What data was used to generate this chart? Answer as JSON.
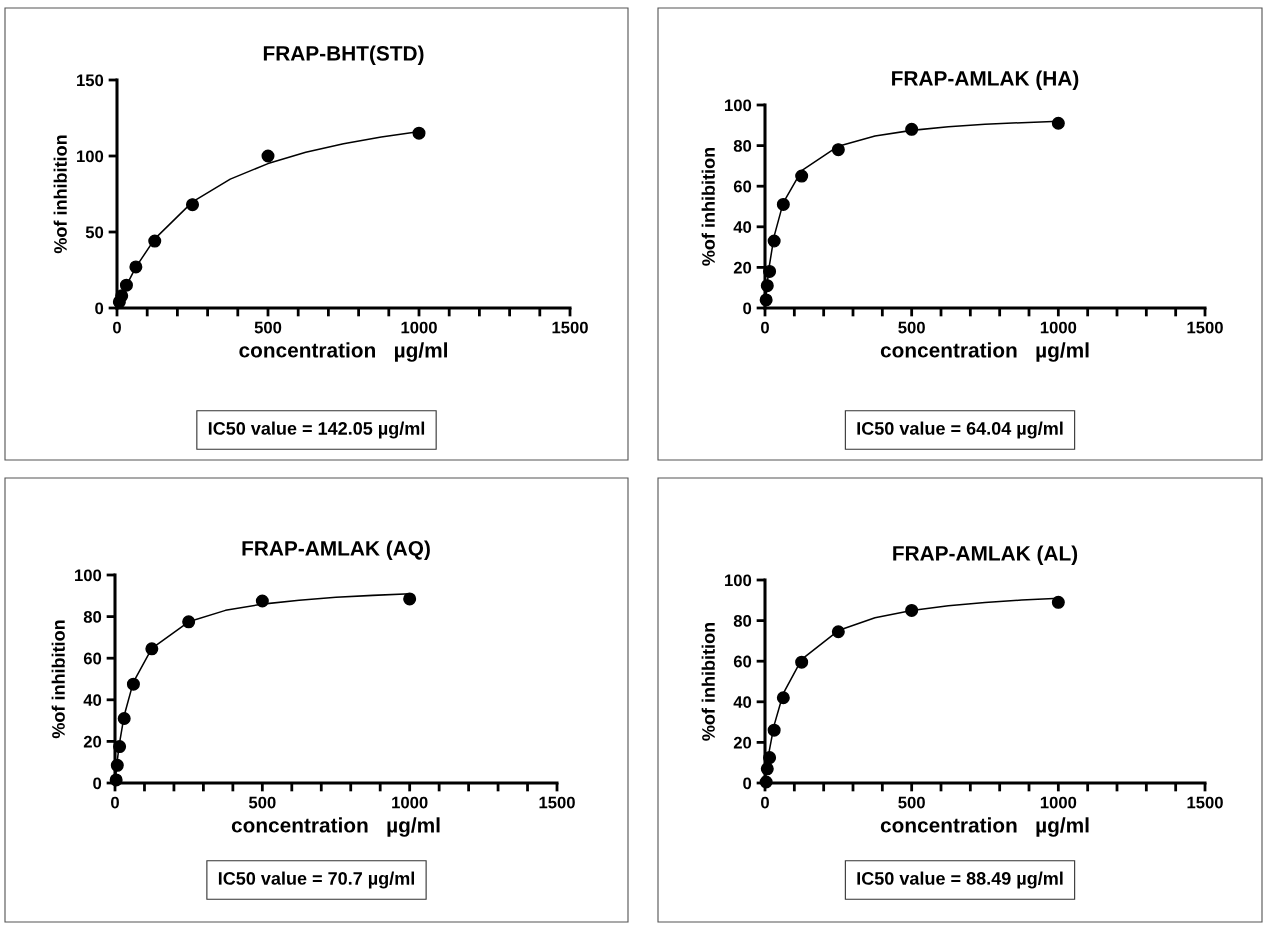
{
  "chart_data": [
    {
      "type": "scatter",
      "title": "FRAP-BHT(STD)",
      "xlabel": "concentration   µg/ml",
      "ylabel": "%of inhibition",
      "xlim": [
        0,
        1500
      ],
      "ylim": [
        0,
        150
      ],
      "xticks": [
        0,
        {
          "value": 100,
          "label": null
        },
        {
          "value": 200,
          "label": null
        },
        {
          "value": 300,
          "label": null
        },
        {
          "value": 400,
          "label": null
        },
        500,
        {
          "value": 600,
          "label": null
        },
        {
          "value": 700,
          "label": null
        },
        {
          "value": 800,
          "label": null
        },
        {
          "value": 900,
          "label": null
        },
        1000,
        {
          "value": 1100,
          "label": null
        },
        {
          "value": 1200,
          "label": null
        },
        {
          "value": 1300,
          "label": null
        },
        {
          "value": 1400,
          "label": null
        },
        1500
      ],
      "yticks": [
        0,
        50,
        100,
        150
      ],
      "grid": false,
      "legend": false,
      "series": [
        {
          "type": "scatter",
          "color": "#000000",
          "marker": "circle",
          "x": [
            7.8,
            15.6,
            31.25,
            62.5,
            125,
            250,
            500,
            1000
          ],
          "values": [
            4,
            8,
            15,
            27,
            44,
            68,
            100,
            115
          ]
        },
        {
          "type": "line",
          "color": "#000000",
          "marker": "none",
          "line_style": "solid",
          "x": [
            0,
            15,
            31,
            62,
            125,
            250,
            375,
            500,
            625,
            750,
            875,
            1000
          ],
          "values": [
            0,
            7.5,
            14.7,
            26.7,
            45.5,
            69.8,
            84.8,
            95.0,
            102.4,
            108.1,
            112.5,
            116.0
          ]
        }
      ],
      "annotations": [
        "IC50 value = 142.05 µg/ml"
      ]
    },
    {
      "type": "scatter",
      "title": "FRAP-AMLAK (HA)",
      "xlabel": "concentration   µg/ml",
      "ylabel": "%of inhibition",
      "xlim": [
        0,
        1500
      ],
      "ylim": [
        0,
        100
      ],
      "xticks": [
        0,
        {
          "value": 100,
          "label": null
        },
        {
          "value": 200,
          "label": null
        },
        {
          "value": 300,
          "label": null
        },
        {
          "value": 400,
          "label": null
        },
        500,
        {
          "value": 600,
          "label": null
        },
        {
          "value": 700,
          "label": null
        },
        {
          "value": 800,
          "label": null
        },
        {
          "value": 900,
          "label": null
        },
        1000,
        {
          "value": 1100,
          "label": null
        },
        {
          "value": 1200,
          "label": null
        },
        {
          "value": 1300,
          "label": null
        },
        {
          "value": 1400,
          "label": null
        },
        1500
      ],
      "yticks": [
        0,
        20,
        40,
        60,
        80,
        100
      ],
      "grid": false,
      "legend": false,
      "x": [
        3.9,
        7.8,
        15.6,
        31.25,
        62.5,
        125,
        250,
        500,
        1000
      ],
      "series": [
        {
          "type": "scatter",
          "color": "#000000",
          "marker": "circle",
          "values": [
            4,
            11,
            18,
            33,
            51,
            65,
            78,
            88,
            91
          ]
        },
        {
          "type": "line",
          "color": "#000000",
          "marker": "none",
          "line_style": "solid",
          "x": [
            0,
            8,
            15,
            31,
            62,
            125,
            250,
            375,
            500,
            625,
            750,
            875,
            1000
          ],
          "values": [
            0,
            12.5,
            21.0,
            35.3,
            51.8,
            67.7,
            79.7,
            84.7,
            87.5,
            89.3,
            90.5,
            91.3,
            92.0
          ]
        }
      ],
      "annotations": [
        "IC50 value = 64.04 µg/ml"
      ]
    },
    {
      "type": "scatter",
      "title": "FRAP-AMLAK (AQ)",
      "xlabel": "concentration   µg/ml",
      "ylabel": "%of inhibition",
      "xlim": [
        0,
        1500
      ],
      "ylim": [
        0,
        100
      ],
      "xticks": [
        0,
        {
          "value": 100,
          "label": null
        },
        {
          "value": 200,
          "label": null
        },
        {
          "value": 300,
          "label": null
        },
        {
          "value": 400,
          "label": null
        },
        500,
        {
          "value": 600,
          "label": null
        },
        {
          "value": 700,
          "label": null
        },
        {
          "value": 800,
          "label": null
        },
        {
          "value": 900,
          "label": null
        },
        1000,
        {
          "value": 1100,
          "label": null
        },
        {
          "value": 1200,
          "label": null
        },
        {
          "value": 1300,
          "label": null
        },
        {
          "value": 1400,
          "label": null
        },
        1500
      ],
      "yticks": [
        0,
        20,
        40,
        60,
        80,
        100
      ],
      "grid": false,
      "legend": false,
      "x": [
        3.9,
        7.8,
        15.6,
        31.25,
        62.5,
        125,
        250,
        500,
        1000
      ],
      "series": [
        {
          "type": "scatter",
          "color": "#000000",
          "marker": "circle",
          "values": [
            1.5,
            8.5,
            17.5,
            31,
            47.5,
            64.5,
            77.5,
            87.5,
            88.5
          ]
        },
        {
          "type": "line",
          "color": "#000000",
          "marker": "none",
          "line_style": "solid",
          "x": [
            0,
            8,
            15,
            31,
            62,
            125,
            250,
            375,
            500,
            625,
            750,
            875,
            1000
          ],
          "values": [
            0,
            11.1,
            18.9,
            32.3,
            48.4,
            64.7,
            77.5,
            83.0,
            86.0,
            87.9,
            89.3,
            90.2,
            91.0
          ]
        }
      ],
      "annotations": [
        "IC50 value = 70.7 µg/ml"
      ]
    },
    {
      "type": "scatter",
      "title": "FRAP-AMLAK (AL)",
      "xlabel": "concentration   µg/ml",
      "ylabel": "%of inhibition",
      "xlim": [
        0,
        1500
      ],
      "ylim": [
        0,
        100
      ],
      "xticks": [
        0,
        {
          "value": 100,
          "label": null
        },
        {
          "value": 200,
          "label": null
        },
        {
          "value": 300,
          "label": null
        },
        {
          "value": 400,
          "label": null
        },
        500,
        {
          "value": 600,
          "label": null
        },
        {
          "value": 700,
          "label": null
        },
        {
          "value": 800,
          "label": null
        },
        {
          "value": 900,
          "label": null
        },
        1000,
        {
          "value": 1100,
          "label": null
        },
        {
          "value": 1200,
          "label": null
        },
        {
          "value": 1300,
          "label": null
        },
        {
          "value": 1400,
          "label": null
        },
        1500
      ],
      "yticks": [
        0,
        20,
        40,
        60,
        80,
        100
      ],
      "grid": false,
      "legend": false,
      "x": [
        3.9,
        7.8,
        15.6,
        31.25,
        62.5,
        125,
        250,
        500,
        1000
      ],
      "series": [
        {
          "type": "scatter",
          "color": "#000000",
          "marker": "circle",
          "values": [
            0.5,
            7,
            12.5,
            26,
            42,
            59.5,
            74.5,
            85,
            89
          ]
        },
        {
          "type": "line",
          "color": "#000000",
          "marker": "none",
          "line_style": "solid",
          "x": [
            0,
            8,
            15,
            31,
            62,
            125,
            250,
            375,
            500,
            625,
            750,
            875,
            1000
          ],
          "values": [
            0,
            9.3,
            16.2,
            28.4,
            44.0,
            60.9,
            75.1,
            81.4,
            85.0,
            87.3,
            88.9,
            90.1,
            91.0
          ]
        }
      ],
      "annotations": [
        "IC50 value = 88.49 µg/ml"
      ]
    }
  ]
}
